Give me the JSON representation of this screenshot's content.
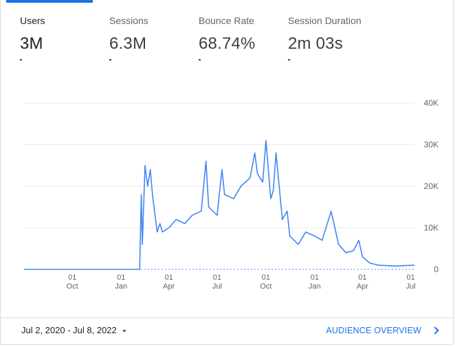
{
  "metrics": [
    {
      "label": "Users",
      "value": "3M",
      "active": true
    },
    {
      "label": "Sessions",
      "value": "6.3M",
      "active": false
    },
    {
      "label": "Bounce Rate",
      "value": "68.74%",
      "active": false
    },
    {
      "label": "Session Duration",
      "value": "2m 03s",
      "active": false
    }
  ],
  "footer": {
    "date_range": "Jul 2, 2020 - Jul 8, 2022",
    "audience_link": "AUDIENCE OVERVIEW"
  },
  "colors": {
    "accent": "#1a73e8",
    "line": "#4285f4"
  },
  "icons": {
    "date_menu": "caret-down-icon",
    "link": "chevron-right-icon"
  },
  "chart_data": {
    "type": "line",
    "series": [
      {
        "x": [
          "2020-07-02",
          "2020-09-01",
          "2020-11-01",
          "2021-01-01",
          "2021-02-05",
          "2021-02-08",
          "2021-02-10",
          "2021-02-15",
          "2021-02-20",
          "2021-02-25",
          "2021-03-01",
          "2021-03-05",
          "2021-03-10",
          "2021-03-15",
          "2021-03-20",
          "2021-04-01",
          "2021-04-15",
          "2021-05-01",
          "2021-05-15",
          "2021-06-01",
          "2021-06-10",
          "2021-06-15",
          "2021-07-01",
          "2021-07-10",
          "2021-07-15",
          "2021-08-01",
          "2021-08-15",
          "2021-09-01",
          "2021-09-10",
          "2021-09-15",
          "2021-09-25",
          "2021-10-01",
          "2021-10-10",
          "2021-10-15",
          "2021-10-20",
          "2021-11-01",
          "2021-11-10",
          "2021-11-15",
          "2021-12-01",
          "2021-12-15",
          "2022-01-01",
          "2022-01-15",
          "2022-02-01",
          "2022-02-15",
          "2022-03-01",
          "2022-03-15",
          "2022-03-25",
          "2022-04-01",
          "2022-04-15",
          "2022-05-01",
          "2022-06-01",
          "2022-07-08"
        ],
        "y": [
          0,
          0,
          0,
          0,
          0,
          18000,
          6000,
          25000,
          20000,
          24000,
          18000,
          14000,
          9000,
          11000,
          9000,
          10000,
          12000,
          11000,
          13000,
          14000,
          26000,
          15000,
          13000,
          24000,
          18000,
          17000,
          20000,
          22000,
          28000,
          23000,
          21000,
          31000,
          17000,
          19000,
          28000,
          12000,
          14000,
          8000,
          6000,
          9000,
          8000,
          7000,
          14000,
          6000,
          4000,
          4500,
          7000,
          3000,
          1500,
          1000,
          800,
          1000
        ]
      }
    ],
    "ylim": [
      0,
      40000
    ],
    "yticks": [
      {
        "v": 40000,
        "label": "40K"
      },
      {
        "v": 30000,
        "label": "30K"
      },
      {
        "v": 20000,
        "label": "20K"
      },
      {
        "v": 10000,
        "label": "10K"
      },
      {
        "v": 0,
        "label": "0"
      }
    ],
    "xticks": [
      {
        "date": "2020-10-01",
        "day": "01",
        "month": "Oct"
      },
      {
        "date": "2021-01-01",
        "day": "01",
        "month": "Jan"
      },
      {
        "date": "2021-04-01",
        "day": "01",
        "month": "Apr"
      },
      {
        "date": "2021-07-01",
        "day": "01",
        "month": "Jul"
      },
      {
        "date": "2021-10-01",
        "day": "01",
        "month": "Oct"
      },
      {
        "date": "2022-01-01",
        "day": "01",
        "month": "Jan"
      },
      {
        "date": "2022-04-01",
        "day": "01",
        "month": "Apr"
      },
      {
        "date": "2022-07-01",
        "day": "01",
        "month": "Jul"
      }
    ],
    "xlim": [
      "2020-07-02",
      "2022-07-08"
    ],
    "grid": true,
    "legend": "none"
  }
}
